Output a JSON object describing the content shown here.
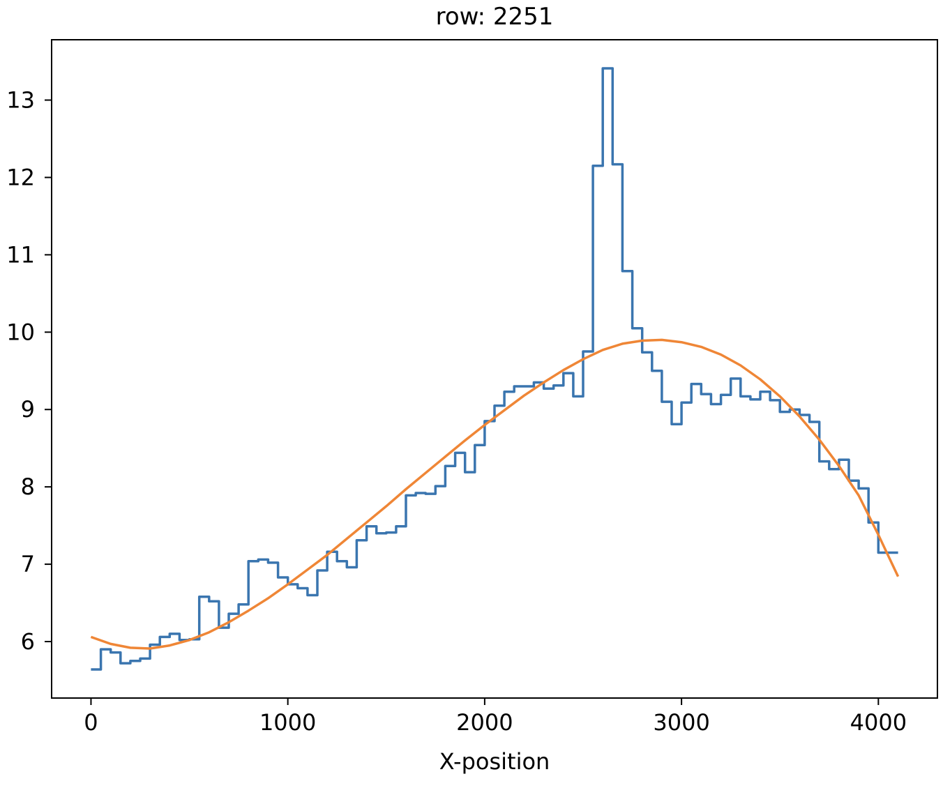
{
  "chart_data": {
    "type": "line",
    "title": "row: 2251",
    "xlabel": "X-position",
    "ylabel": "",
    "xlim": [
      -200,
      4300
    ],
    "ylim": [
      5.27,
      13.78
    ],
    "x_ticks": [
      0,
      1000,
      2000,
      3000,
      4000
    ],
    "y_ticks": [
      6,
      7,
      8,
      9,
      10,
      11,
      12,
      13
    ],
    "x_tick_labels": [
      "0",
      "1000",
      "2000",
      "3000",
      "4000"
    ],
    "y_tick_labels": [
      "6",
      "7",
      "8",
      "9",
      "10",
      "11",
      "12",
      "13"
    ],
    "grid": false,
    "legend": null,
    "series": [
      {
        "style": "step-post",
        "color": "#3a75af",
        "x": [
          0,
          50,
          100,
          150,
          200,
          250,
          300,
          350,
          400,
          450,
          500,
          550,
          600,
          650,
          700,
          750,
          800,
          850,
          900,
          950,
          1000,
          1050,
          1100,
          1150,
          1200,
          1250,
          1300,
          1350,
          1400,
          1450,
          1500,
          1550,
          1600,
          1650,
          1700,
          1750,
          1800,
          1850,
          1900,
          1950,
          2000,
          2050,
          2100,
          2150,
          2200,
          2250,
          2300,
          2350,
          2400,
          2450,
          2500,
          2550,
          2600,
          2650,
          2700,
          2750,
          2800,
          2850,
          2900,
          2950,
          3000,
          3050,
          3100,
          3150,
          3200,
          3250,
          3300,
          3350,
          3400,
          3450,
          3500,
          3550,
          3600,
          3650,
          3700,
          3750,
          3800,
          3850,
          3900,
          3950,
          4000,
          4050,
          4100
        ],
        "y": [
          5.64,
          5.9,
          5.86,
          5.72,
          5.75,
          5.78,
          5.96,
          6.06,
          6.1,
          6.02,
          6.03,
          6.58,
          6.52,
          6.18,
          6.36,
          6.48,
          7.04,
          7.06,
          7.02,
          6.83,
          6.74,
          6.69,
          6.6,
          6.92,
          7.16,
          7.04,
          6.96,
          7.31,
          7.49,
          7.4,
          7.41,
          7.49,
          7.89,
          7.92,
          7.91,
          8.01,
          8.27,
          8.44,
          8.19,
          8.54,
          8.85,
          9.05,
          9.23,
          9.3,
          9.3,
          9.35,
          9.27,
          9.31,
          9.47,
          9.17,
          9.75,
          12.15,
          13.41,
          12.17,
          10.79,
          10.05,
          9.74,
          9.5,
          9.1,
          8.81,
          9.09,
          9.33,
          9.2,
          9.07,
          9.19,
          9.4,
          9.17,
          9.13,
          9.23,
          9.12,
          8.97,
          9.0,
          8.93,
          8.84,
          8.33,
          8.23,
          8.35,
          8.08,
          7.98,
          7.54,
          7.15,
          7.15,
          7.15
        ]
      },
      {
        "style": "line",
        "color": "#ef8636",
        "x": [
          0,
          100,
          200,
          300,
          400,
          500,
          600,
          700,
          800,
          900,
          1000,
          1100,
          1200,
          1300,
          1400,
          1500,
          1600,
          1700,
          1800,
          1900,
          2000,
          2100,
          2200,
          2300,
          2400,
          2500,
          2600,
          2700,
          2800,
          2900,
          3000,
          3100,
          3200,
          3300,
          3400,
          3500,
          3600,
          3700,
          3800,
          3900,
          4000,
          4100
        ],
        "y": [
          6.06,
          5.97,
          5.92,
          5.91,
          5.95,
          6.02,
          6.12,
          6.25,
          6.4,
          6.56,
          6.74,
          6.93,
          7.12,
          7.33,
          7.54,
          7.75,
          7.97,
          8.18,
          8.39,
          8.6,
          8.8,
          8.99,
          9.18,
          9.35,
          9.51,
          9.65,
          9.77,
          9.85,
          9.89,
          9.9,
          9.87,
          9.81,
          9.71,
          9.57,
          9.39,
          9.17,
          8.91,
          8.61,
          8.27,
          7.89,
          7.38,
          6.84
        ]
      }
    ]
  }
}
